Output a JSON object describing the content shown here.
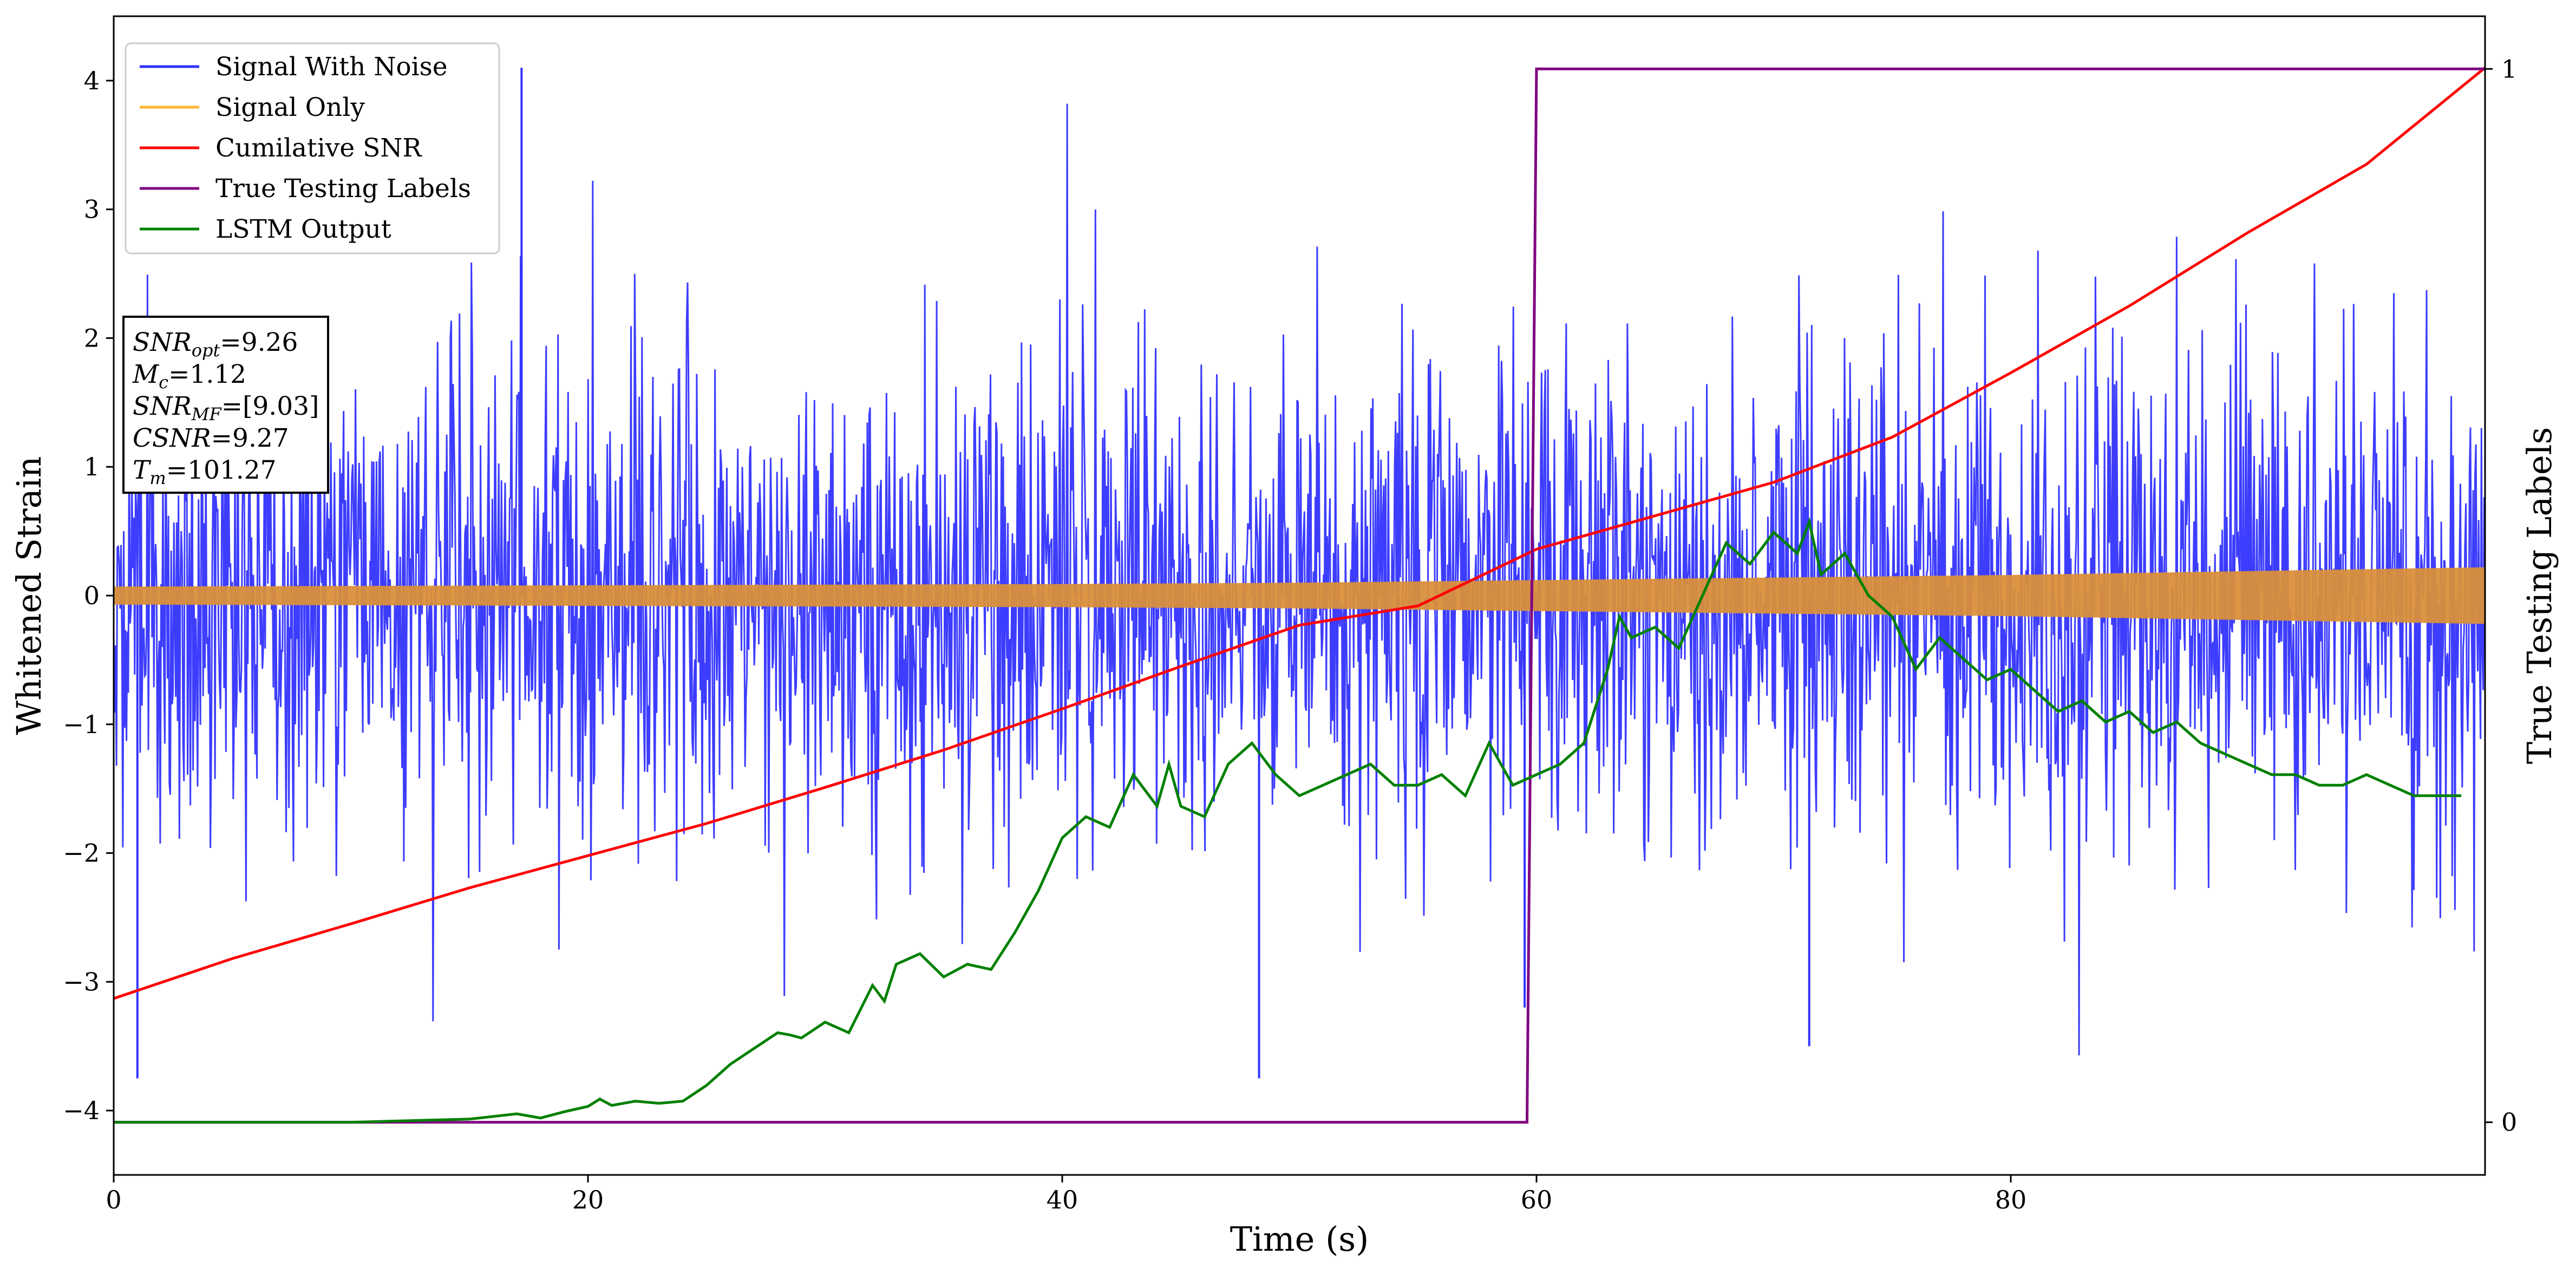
{
  "chart_data": {
    "type": "line",
    "xlabel": "Time (s)",
    "ylabel": "Whitened Strain",
    "y2label": "True Testing Labels",
    "xlim": [
      0,
      100
    ],
    "ylim": [
      -4.5,
      4.5
    ],
    "y2lim": [
      -0.05,
      1.05
    ],
    "xticks": [
      0,
      20,
      40,
      60,
      80
    ],
    "yticks": [
      -4,
      -3,
      -2,
      -1,
      0,
      1,
      2,
      3,
      4
    ],
    "y2ticks": [
      0,
      1
    ],
    "grid": false,
    "legend_position": "top-left",
    "annotation": [
      {
        "base": "SNR",
        "sub": "opt",
        "value": "=9.26"
      },
      {
        "base": "M",
        "sub": "c",
        "value": "=1.12"
      },
      {
        "base": "SNR",
        "sub": "MF",
        "value": "=[9.03]"
      },
      {
        "base": "CSNR",
        "sub": "",
        "value": "=9.27"
      },
      {
        "base": "T",
        "sub": "m",
        "value": "=101.27"
      }
    ],
    "series": [
      {
        "name": "Signal With Noise",
        "color": "#3333ff",
        "axis": "left",
        "style": "noise band",
        "typical_range": [
          -2.0,
          2.0
        ],
        "max_value": 4.1,
        "min_value": -3.75
      },
      {
        "name": "Signal Only",
        "color": "#d98f3a",
        "axis": "left",
        "style": "chirp band",
        "x": [
          0,
          20,
          40,
          50,
          60,
          70,
          80,
          90,
          100
        ],
        "amplitude": [
          0.07,
          0.08,
          0.09,
          0.1,
          0.12,
          0.14,
          0.16,
          0.19,
          0.22
        ]
      },
      {
        "name": "Cumilative SNR",
        "color": "#ff0000",
        "axis": "left",
        "x": [
          0,
          5,
          10,
          15,
          20,
          25,
          30,
          35,
          40,
          45,
          50,
          55,
          60,
          65,
          70,
          75,
          80,
          85,
          90,
          95,
          100
        ],
        "y": [
          -3.13,
          -2.82,
          -2.55,
          -2.27,
          -2.02,
          -1.77,
          -1.49,
          -1.2,
          -0.88,
          -0.55,
          -0.23,
          -0.08,
          0.36,
          0.62,
          0.88,
          1.23,
          1.73,
          2.25,
          2.82,
          3.35,
          4.1
        ]
      },
      {
        "name": "True Testing Labels",
        "color": "#800080",
        "axis": "right",
        "x": [
          0,
          59.6,
          60.0,
          100
        ],
        "y": [
          0,
          0,
          1,
          1
        ]
      },
      {
        "name": "LSTM Output",
        "color": "#008000",
        "axis": "right",
        "x": [
          0,
          10,
          15,
          17,
          18,
          19,
          20,
          20.5,
          21,
          22,
          23,
          24,
          25,
          26,
          27,
          28,
          28.5,
          29,
          30,
          31,
          32,
          32.5,
          33,
          34,
          35,
          36,
          37,
          38,
          39,
          40,
          41,
          42,
          43,
          44,
          44.5,
          45,
          46,
          47,
          48,
          49,
          50,
          51,
          52,
          53,
          54,
          55,
          56,
          57,
          58,
          59,
          60,
          61,
          62,
          63,
          63.5,
          64,
          65,
          66,
          67,
          68,
          69,
          70,
          71,
          71.5,
          72,
          73,
          74,
          75,
          76,
          77,
          78,
          79,
          80,
          81,
          82,
          83,
          84,
          85,
          86,
          87,
          88,
          89,
          90,
          91,
          92,
          93,
          94,
          95,
          96,
          97,
          98,
          99
        ],
        "y": [
          0.0,
          0.0,
          0.003,
          0.008,
          0.004,
          0.01,
          0.015,
          0.022,
          0.016,
          0.02,
          0.018,
          0.02,
          0.035,
          0.055,
          0.07,
          0.085,
          0.083,
          0.08,
          0.095,
          0.085,
          0.13,
          0.115,
          0.15,
          0.16,
          0.138,
          0.15,
          0.145,
          0.18,
          0.22,
          0.27,
          0.29,
          0.28,
          0.33,
          0.3,
          0.34,
          0.3,
          0.29,
          0.34,
          0.36,
          0.33,
          0.31,
          0.32,
          0.33,
          0.34,
          0.32,
          0.32,
          0.33,
          0.31,
          0.36,
          0.32,
          0.33,
          0.34,
          0.36,
          0.43,
          0.48,
          0.46,
          0.47,
          0.45,
          0.5,
          0.55,
          0.53,
          0.56,
          0.54,
          0.57,
          0.52,
          0.54,
          0.5,
          0.48,
          0.43,
          0.46,
          0.44,
          0.42,
          0.43,
          0.41,
          0.39,
          0.4,
          0.38,
          0.39,
          0.37,
          0.38,
          0.36,
          0.35,
          0.34,
          0.33,
          0.33,
          0.32,
          0.32,
          0.33,
          0.32,
          0.31,
          0.31,
          0.31
        ]
      }
    ]
  }
}
